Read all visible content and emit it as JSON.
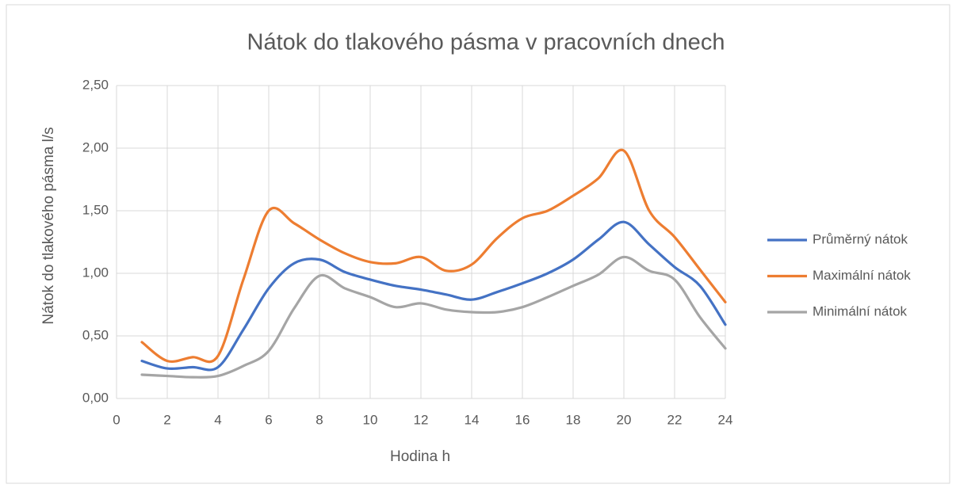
{
  "chart_data": {
    "type": "line",
    "title": "Nátok do tlakového pásma v pracovních dnech",
    "x_label": "Hodina h",
    "y_label": "Nátok do tlakového pásma l/s",
    "x": [
      1,
      2,
      3,
      4,
      5,
      6,
      7,
      8,
      9,
      10,
      11,
      12,
      13,
      14,
      15,
      16,
      17,
      18,
      19,
      20,
      21,
      22,
      23,
      24
    ],
    "series": [
      {
        "name": "Průměrný nátok",
        "color": "#4472c4",
        "values": [
          0.3,
          0.24,
          0.25,
          0.25,
          0.55,
          0.88,
          1.08,
          1.11,
          1.01,
          0.95,
          0.9,
          0.87,
          0.83,
          0.79,
          0.85,
          0.92,
          1.0,
          1.11,
          1.27,
          1.41,
          1.23,
          1.05,
          0.9,
          0.59
        ]
      },
      {
        "name": "Maximální nátok",
        "color": "#ed7d31",
        "values": [
          0.45,
          0.3,
          0.33,
          0.34,
          0.95,
          1.5,
          1.4,
          1.27,
          1.16,
          1.09,
          1.08,
          1.13,
          1.02,
          1.07,
          1.28,
          1.44,
          1.5,
          1.62,
          1.76,
          1.98,
          1.5,
          1.29,
          1.03,
          0.77
        ]
      },
      {
        "name": "Minimální nátok",
        "color": "#a5a5a5",
        "values": [
          0.19,
          0.18,
          0.17,
          0.18,
          0.26,
          0.38,
          0.72,
          0.98,
          0.88,
          0.81,
          0.73,
          0.76,
          0.71,
          0.69,
          0.69,
          0.73,
          0.81,
          0.9,
          0.99,
          1.13,
          1.02,
          0.95,
          0.65,
          0.4
        ]
      }
    ],
    "xlim": [
      0,
      24
    ],
    "xticks": [
      0,
      2,
      4,
      6,
      8,
      10,
      12,
      14,
      16,
      18,
      20,
      22,
      24
    ],
    "ylim": [
      0,
      2.5
    ],
    "yticks": [
      {
        "value": 0,
        "label": "0,00"
      },
      {
        "value": 0.5,
        "label": "0,50"
      },
      {
        "value": 1,
        "label": "1,00"
      },
      {
        "value": 1.5,
        "label": "1,50"
      },
      {
        "value": 2,
        "label": "2,00"
      },
      {
        "value": 2.5,
        "label": "2,50"
      }
    ],
    "grid": true,
    "smooth": true,
    "legend": "right"
  }
}
